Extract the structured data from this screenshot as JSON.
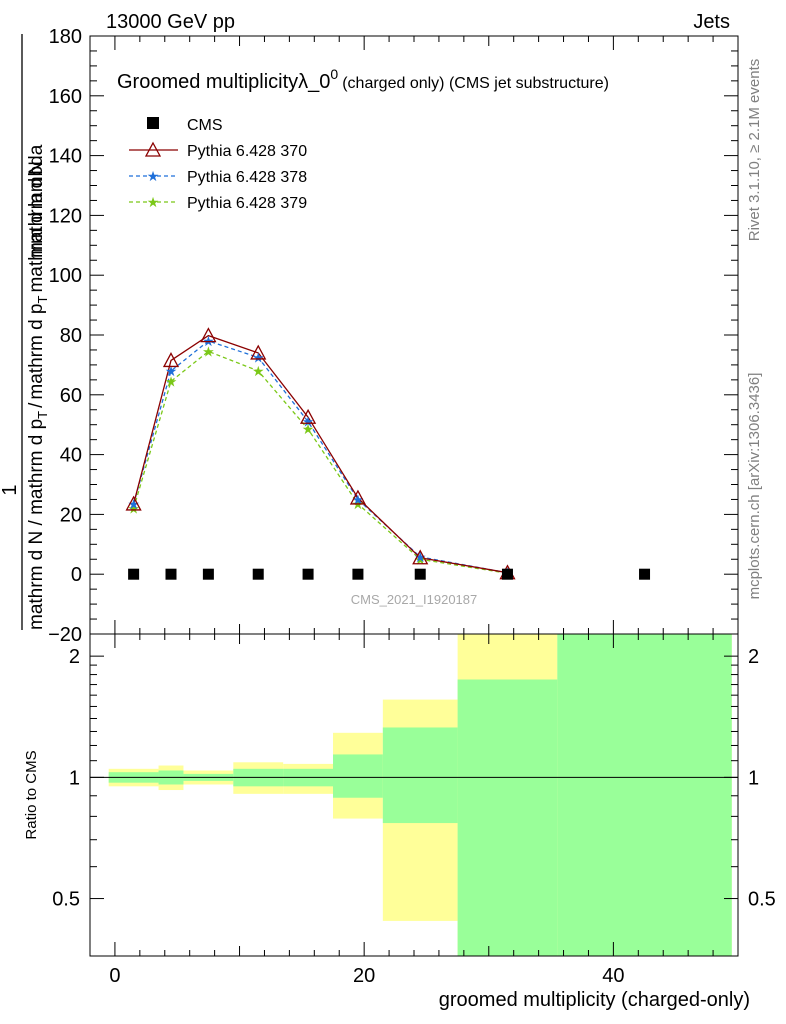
{
  "header": {
    "left": "13000 GeV pp",
    "right": "Jets"
  },
  "side_labels": {
    "rivet": "Rivet 3.1.10, ≥ 2.1M events",
    "mcplots": "mcplots.cern.ch [arXiv:1306.3436]"
  },
  "watermark": "CMS_2021_I1920187",
  "colors": {
    "cms": "#000000",
    "pythia370": "#8b0000",
    "pythia378": "#1e6fd9",
    "pythia379": "#7bc818",
    "band_outer": "#ffff99",
    "band_inner": "#99ff99"
  },
  "chart_data": [
    {
      "type": "line",
      "title": "Groomed multiplicity",
      "title_parts": {
        "main": "Groomed multiplicityλ_0",
        "sup": "0",
        "tail": "(charged only) (CMS jet substructure)"
      },
      "ylabel": {
        "one": "1",
        "den_left": "mathrm d N / mathrm d p",
        "den_sub": "T",
        "den_right": "mathrm d p",
        "den_sub2": "T",
        "den_end": "mathrm d lambda",
        "numerator": "mathrm d",
        "num_cont": "N",
        "num_pt": "mathrm d p",
        "num_pt_sub": "T",
        "num_end": "mathrm d lambda"
      },
      "ylabel_text": {
        "line1": "mathrm d N",
        "line2": "mathrm d p",
        "line2_sub": "T",
        "line3": "mathrm d lambda"
      },
      "xlim": [
        -2,
        50
      ],
      "ylim": [
        -20,
        180
      ],
      "yticks": [
        -20,
        0,
        20,
        40,
        60,
        80,
        100,
        120,
        140,
        160,
        180
      ],
      "ytick_labels": [
        "−20",
        "0",
        "20",
        "40",
        "60",
        "80",
        "100",
        "120",
        "140",
        "160",
        "180"
      ],
      "legend_position": "top-left",
      "series": [
        {
          "name": "CMS",
          "style": "square",
          "x": [
            1.5,
            4.5,
            7.5,
            11.5,
            15.5,
            19.5,
            24.5,
            31.5,
            42.5
          ],
          "y": [
            0,
            0,
            0,
            0,
            0,
            0,
            0,
            0,
            0
          ]
        },
        {
          "name": "Pythia 6.428 370",
          "style": "triangle",
          "x": [
            1.5,
            4.5,
            7.5,
            11.5,
            15.5,
            19.5,
            24.5,
            31.5
          ],
          "y": [
            23.5,
            71.5,
            79.8,
            74.0,
            52.5,
            25.5,
            5.5,
            0.5
          ]
        },
        {
          "name": "Pythia 6.428 378",
          "style": "star-dashed",
          "x": [
            1.5,
            4.5,
            7.5,
            11.5,
            15.5,
            19.5,
            24.5,
            31.5
          ],
          "y": [
            23.5,
            68.0,
            78.0,
            72.5,
            51.0,
            25.0,
            5.8,
            0.5
          ]
        },
        {
          "name": "Pythia 6.428 379",
          "style": "star-dashed",
          "x": [
            1.5,
            4.5,
            7.5,
            11.5,
            15.5,
            19.5,
            24.5,
            31.5
          ],
          "y": [
            22.0,
            64.5,
            74.5,
            68.0,
            48.5,
            23.5,
            5.0,
            0.3
          ]
        }
      ]
    },
    {
      "type": "area",
      "ylabel": "Ratio to CMS",
      "xlabel": "groomed multiplicity (charged-only)",
      "xlim": [
        -2,
        50
      ],
      "ylim": [
        0.36,
        2.27
      ],
      "xticks": [
        0,
        20,
        40
      ],
      "xtick_labels": [
        "0",
        "20",
        "40"
      ],
      "yticks": [
        0.5,
        1,
        2
      ],
      "ytick_labels": [
        "0.5",
        "1",
        "2"
      ],
      "bins": [
        {
          "x0": -0.5,
          "x1": 3.5,
          "outer": [
            0.95,
            1.05
          ],
          "inner": [
            0.97,
            1.03
          ]
        },
        {
          "x0": 3.5,
          "x1": 5.5,
          "outer": [
            0.93,
            1.07
          ],
          "inner": [
            0.96,
            1.04
          ]
        },
        {
          "x0": 5.5,
          "x1": 9.5,
          "outer": [
            0.96,
            1.04
          ],
          "inner": [
            0.98,
            1.02
          ]
        },
        {
          "x0": 9.5,
          "x1": 13.5,
          "outer": [
            0.91,
            1.09
          ],
          "inner": [
            0.95,
            1.05
          ]
        },
        {
          "x0": 13.5,
          "x1": 17.5,
          "outer": [
            0.91,
            1.08
          ],
          "inner": [
            0.95,
            1.05
          ]
        },
        {
          "x0": 17.5,
          "x1": 21.5,
          "outer": [
            0.79,
            1.29
          ],
          "inner": [
            0.89,
            1.14
          ]
        },
        {
          "x0": 21.5,
          "x1": 27.5,
          "outer": [
            0.44,
            1.56
          ],
          "inner": [
            0.77,
            1.33
          ]
        },
        {
          "x0": 27.5,
          "x1": 35.5,
          "outer": [
            0.36,
            2.27
          ],
          "inner": [
            0.36,
            1.75
          ]
        },
        {
          "x0": 35.5,
          "x1": 49.5,
          "outer": [
            0.36,
            2.27
          ],
          "inner": [
            0.36,
            2.27
          ]
        }
      ]
    }
  ]
}
